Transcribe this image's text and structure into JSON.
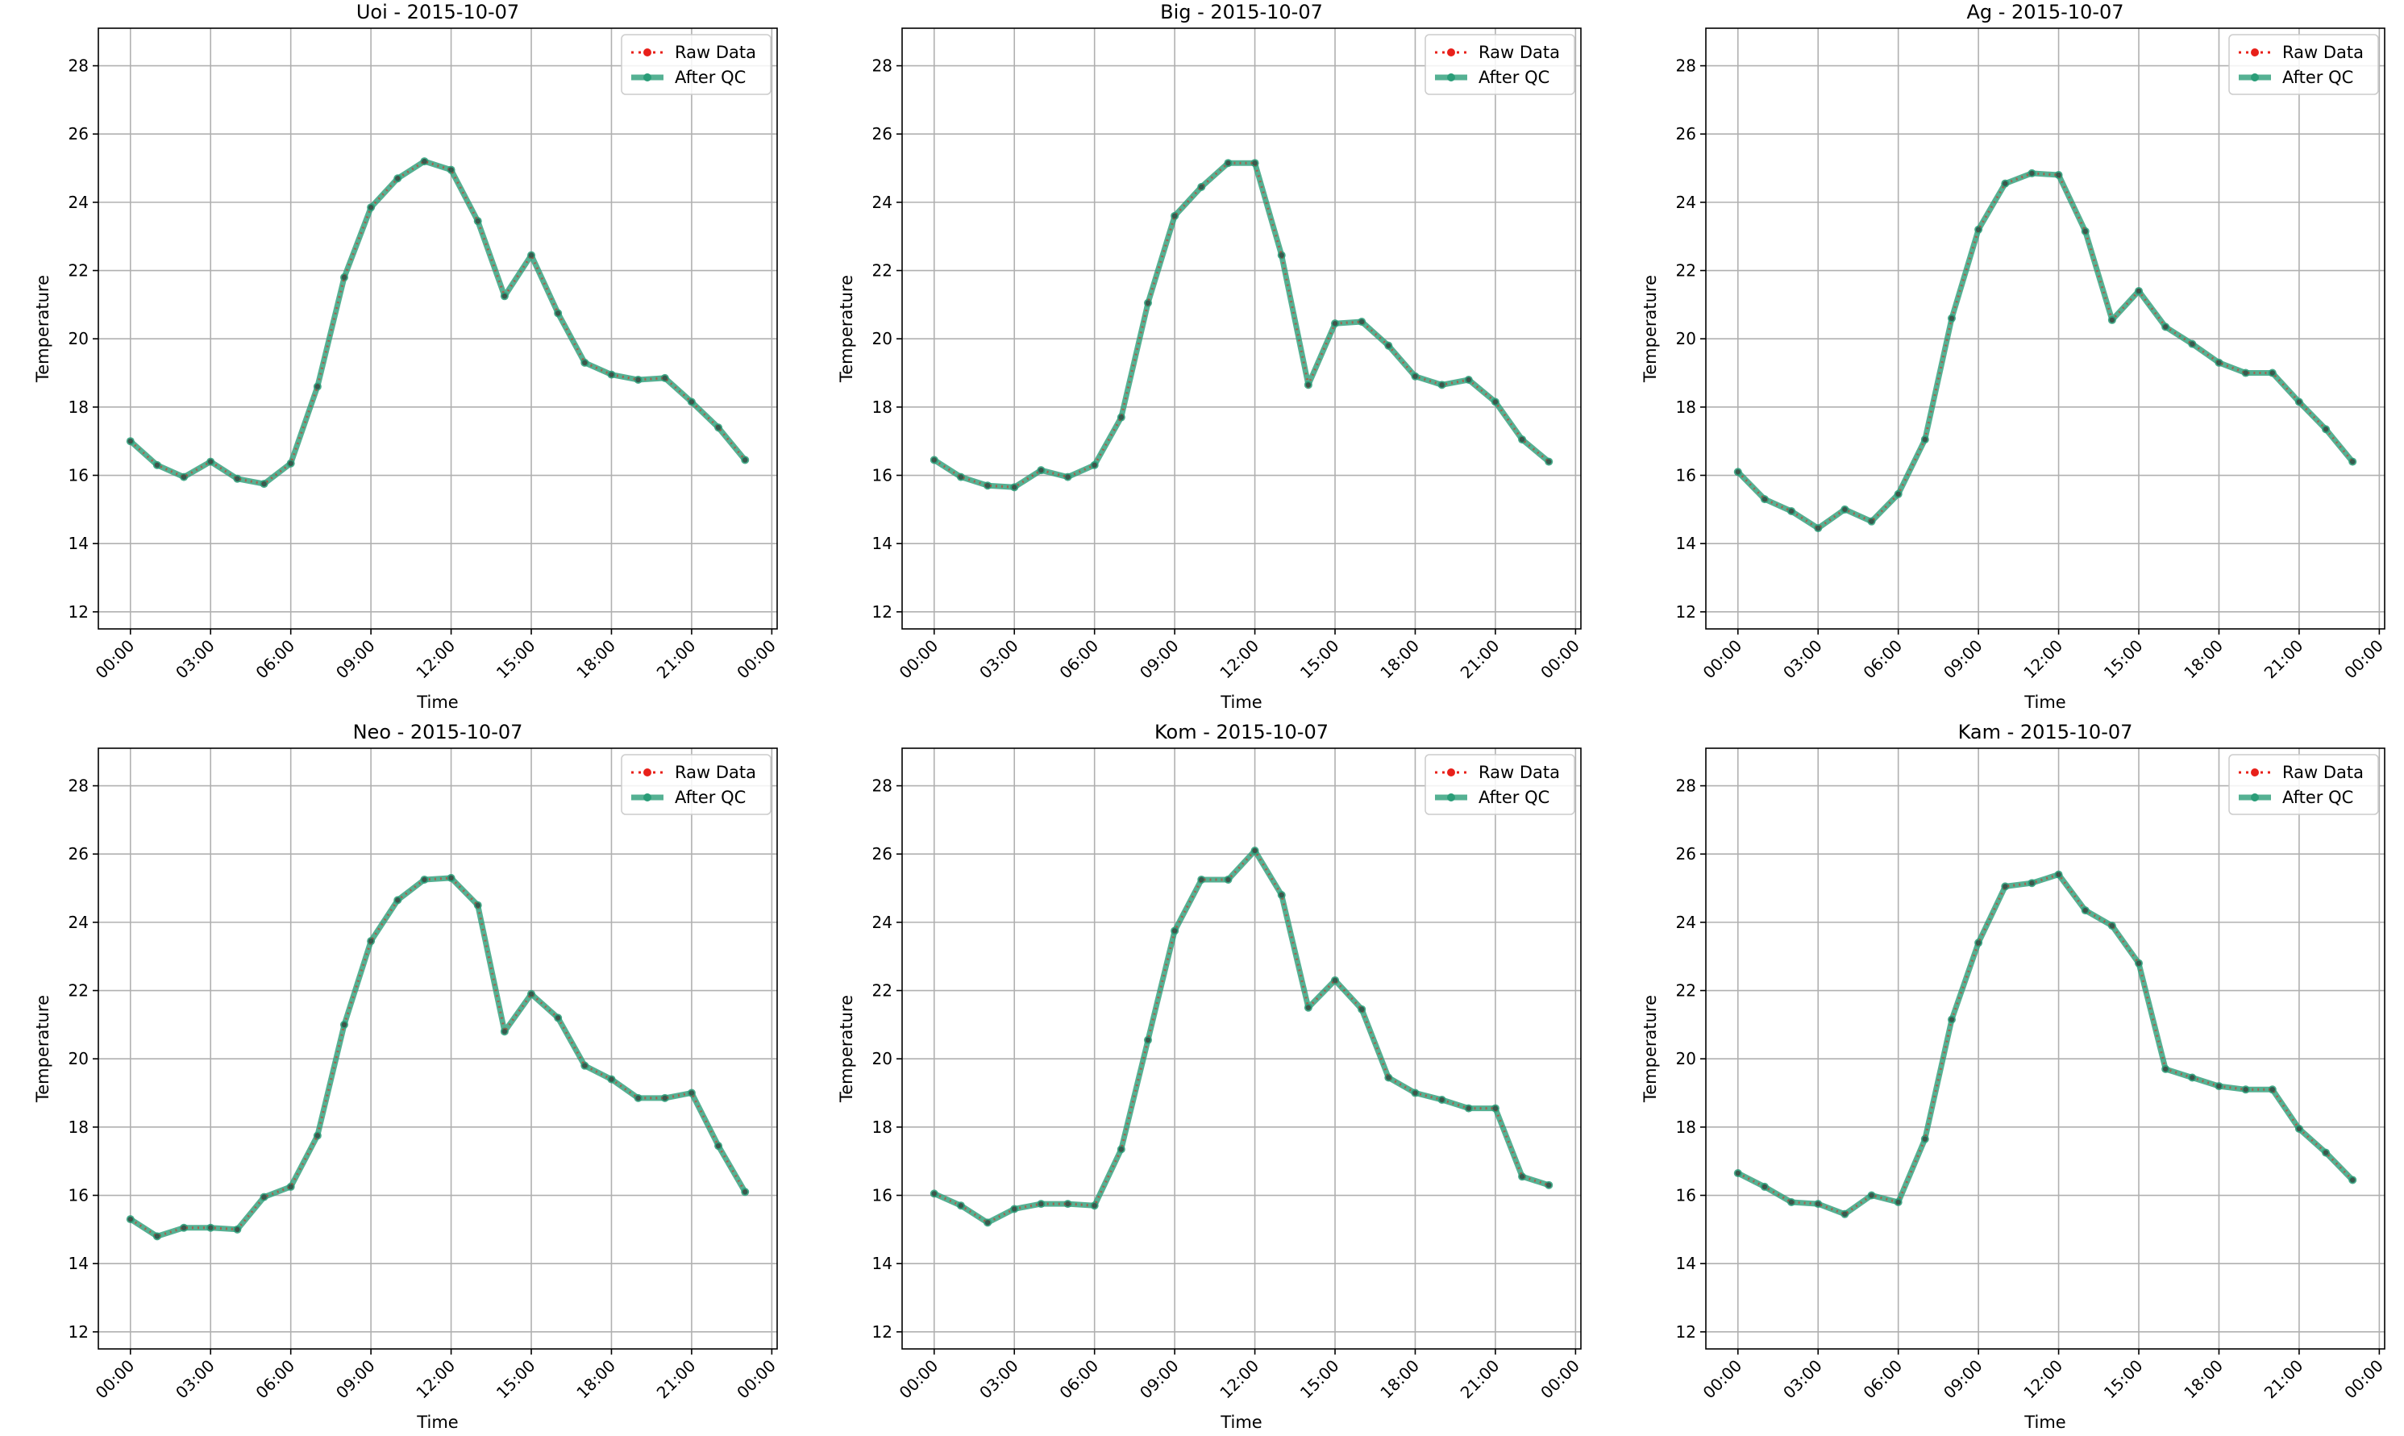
{
  "colors": {
    "raw": "#e8201a",
    "qc": "#2a9d78",
    "grid": "#b0b0b0",
    "axis": "#000000"
  },
  "legend_labels": {
    "raw": "Raw Data",
    "qc": "After QC"
  },
  "chart_data": [
    {
      "type": "line",
      "title": "Uoi - 2015-10-07",
      "xlabel": "Time",
      "ylabel": "Temperature",
      "x_ticks": [
        "00:00",
        "03:00",
        "06:00",
        "09:00",
        "12:00",
        "15:00",
        "18:00",
        "21:00",
        "00:00"
      ],
      "y_ticks": [
        12,
        14,
        16,
        18,
        20,
        22,
        24,
        26,
        28
      ],
      "ylim": [
        11.5,
        29.1
      ],
      "xlim_hours": [
        -1.2,
        24.2
      ],
      "grid": true,
      "legend": "top-right",
      "x_hours": [
        0,
        1,
        2,
        3,
        4,
        5,
        6,
        7,
        8,
        9,
        10,
        11,
        12,
        13,
        14,
        15,
        16,
        17,
        18,
        19,
        20,
        21,
        22,
        23
      ],
      "series": [
        {
          "name": "Raw Data",
          "values": [
            17.0,
            16.3,
            15.95,
            16.4,
            15.9,
            15.75,
            16.35,
            18.6,
            21.8,
            23.85,
            24.7,
            25.2,
            24.95,
            23.45,
            21.25,
            22.45,
            20.75,
            19.3,
            18.95,
            18.8,
            18.85,
            18.15,
            17.4,
            16.45
          ]
        },
        {
          "name": "After QC",
          "values": [
            17.0,
            16.3,
            15.95,
            16.4,
            15.9,
            15.75,
            16.35,
            18.6,
            21.8,
            23.85,
            24.7,
            25.2,
            24.95,
            23.45,
            21.25,
            22.45,
            20.75,
            19.3,
            18.95,
            18.8,
            18.85,
            18.15,
            17.4,
            16.45
          ]
        }
      ]
    },
    {
      "type": "line",
      "title": "Big - 2015-10-07",
      "xlabel": "Time",
      "ylabel": "Temperature",
      "x_ticks": [
        "00:00",
        "03:00",
        "06:00",
        "09:00",
        "12:00",
        "15:00",
        "18:00",
        "21:00",
        "00:00"
      ],
      "y_ticks": [
        12,
        14,
        16,
        18,
        20,
        22,
        24,
        26,
        28
      ],
      "ylim": [
        11.5,
        29.1
      ],
      "xlim_hours": [
        -1.2,
        24.2
      ],
      "grid": true,
      "legend": "top-right",
      "x_hours": [
        0,
        1,
        2,
        3,
        4,
        5,
        6,
        7,
        8,
        9,
        10,
        11,
        12,
        13,
        14,
        15,
        16,
        17,
        18,
        19,
        20,
        21,
        22,
        23
      ],
      "series": [
        {
          "name": "Raw Data",
          "values": [
            16.45,
            15.95,
            15.7,
            15.65,
            16.15,
            15.95,
            16.3,
            17.7,
            21.05,
            23.6,
            24.45,
            25.15,
            25.15,
            22.45,
            18.65,
            20.45,
            20.5,
            19.8,
            18.9,
            18.65,
            18.8,
            18.15,
            17.05,
            16.4
          ]
        },
        {
          "name": "After QC",
          "values": [
            16.45,
            15.95,
            15.7,
            15.65,
            16.15,
            15.95,
            16.3,
            17.7,
            21.05,
            23.6,
            24.45,
            25.15,
            25.15,
            22.45,
            18.65,
            20.45,
            20.5,
            19.8,
            18.9,
            18.65,
            18.8,
            18.15,
            17.05,
            16.4
          ]
        }
      ]
    },
    {
      "type": "line",
      "title": "Ag - 2015-10-07",
      "xlabel": "Time",
      "ylabel": "Temperature",
      "x_ticks": [
        "00:00",
        "03:00",
        "06:00",
        "09:00",
        "12:00",
        "15:00",
        "18:00",
        "21:00",
        "00:00"
      ],
      "y_ticks": [
        12,
        14,
        16,
        18,
        20,
        22,
        24,
        26,
        28
      ],
      "ylim": [
        11.5,
        29.1
      ],
      "xlim_hours": [
        -1.2,
        24.2
      ],
      "grid": true,
      "legend": "top-right",
      "x_hours": [
        0,
        1,
        2,
        3,
        4,
        5,
        6,
        7,
        8,
        9,
        10,
        11,
        12,
        13,
        14,
        15,
        16,
        17,
        18,
        19,
        20,
        21,
        22,
        23
      ],
      "series": [
        {
          "name": "Raw Data",
          "values": [
            16.1,
            15.3,
            14.95,
            14.45,
            15.0,
            14.65,
            15.45,
            17.05,
            20.6,
            23.2,
            24.55,
            24.85,
            24.8,
            23.15,
            20.55,
            21.4,
            20.35,
            19.85,
            19.3,
            19.0,
            19.0,
            18.15,
            17.35,
            16.4
          ]
        },
        {
          "name": "After QC",
          "values": [
            16.1,
            15.3,
            14.95,
            14.45,
            15.0,
            14.65,
            15.45,
            17.05,
            20.6,
            23.2,
            24.55,
            24.85,
            24.8,
            23.15,
            20.55,
            21.4,
            20.35,
            19.85,
            19.3,
            19.0,
            19.0,
            18.15,
            17.35,
            16.4
          ]
        }
      ]
    },
    {
      "type": "line",
      "title": "Neo - 2015-10-07",
      "xlabel": "Time",
      "ylabel": "Temperature",
      "x_ticks": [
        "00:00",
        "03:00",
        "06:00",
        "09:00",
        "12:00",
        "15:00",
        "18:00",
        "21:00",
        "00:00"
      ],
      "y_ticks": [
        12,
        14,
        16,
        18,
        20,
        22,
        24,
        26,
        28
      ],
      "ylim": [
        11.5,
        29.1
      ],
      "xlim_hours": [
        -1.2,
        24.2
      ],
      "grid": true,
      "legend": "top-right",
      "x_hours": [
        0,
        1,
        2,
        3,
        4,
        5,
        6,
        7,
        8,
        9,
        10,
        11,
        12,
        13,
        14,
        15,
        16,
        17,
        18,
        19,
        20,
        21,
        22,
        23
      ],
      "series": [
        {
          "name": "Raw Data",
          "values": [
            15.3,
            14.8,
            15.05,
            15.05,
            15.0,
            15.95,
            16.25,
            17.75,
            21.0,
            23.45,
            24.65,
            25.25,
            25.3,
            24.5,
            20.8,
            21.9,
            21.2,
            19.8,
            19.4,
            18.85,
            18.85,
            19.0,
            17.45,
            16.1
          ]
        },
        {
          "name": "After QC",
          "values": [
            15.3,
            14.8,
            15.05,
            15.05,
            15.0,
            15.95,
            16.25,
            17.75,
            21.0,
            23.45,
            24.65,
            25.25,
            25.3,
            24.5,
            20.8,
            21.9,
            21.2,
            19.8,
            19.4,
            18.85,
            18.85,
            19.0,
            17.45,
            16.1
          ]
        }
      ]
    },
    {
      "type": "line",
      "title": "Kom - 2015-10-07",
      "xlabel": "Time",
      "ylabel": "Temperature",
      "x_ticks": [
        "00:00",
        "03:00",
        "06:00",
        "09:00",
        "12:00",
        "15:00",
        "18:00",
        "21:00",
        "00:00"
      ],
      "y_ticks": [
        12,
        14,
        16,
        18,
        20,
        22,
        24,
        26,
        28
      ],
      "ylim": [
        11.5,
        29.1
      ],
      "xlim_hours": [
        -1.2,
        24.2
      ],
      "grid": true,
      "legend": "top-right",
      "x_hours": [
        0,
        1,
        2,
        3,
        4,
        5,
        6,
        7,
        8,
        9,
        10,
        11,
        12,
        13,
        14,
        15,
        16,
        17,
        18,
        19,
        20,
        21,
        22,
        23
      ],
      "series": [
        {
          "name": "Raw Data",
          "values": [
            16.05,
            15.7,
            15.2,
            15.6,
            15.75,
            15.75,
            15.7,
            17.35,
            20.55,
            23.75,
            25.25,
            25.25,
            26.1,
            24.8,
            21.5,
            22.3,
            21.45,
            19.45,
            19.0,
            18.8,
            18.55,
            18.55,
            16.55,
            16.3
          ]
        },
        {
          "name": "After QC",
          "values": [
            16.05,
            15.7,
            15.2,
            15.6,
            15.75,
            15.75,
            15.7,
            17.35,
            20.55,
            23.75,
            25.25,
            25.25,
            26.1,
            24.8,
            21.5,
            22.3,
            21.45,
            19.45,
            19.0,
            18.8,
            18.55,
            18.55,
            16.55,
            16.3
          ]
        }
      ]
    },
    {
      "type": "line",
      "title": "Kam - 2015-10-07",
      "xlabel": "Time",
      "ylabel": "Temperature",
      "x_ticks": [
        "00:00",
        "03:00",
        "06:00",
        "09:00",
        "12:00",
        "15:00",
        "18:00",
        "21:00",
        "00:00"
      ],
      "y_ticks": [
        12,
        14,
        16,
        18,
        20,
        22,
        24,
        26,
        28
      ],
      "ylim": [
        11.5,
        29.1
      ],
      "xlim_hours": [
        -1.2,
        24.2
      ],
      "grid": true,
      "legend": "top-right",
      "x_hours": [
        0,
        1,
        2,
        3,
        4,
        5,
        6,
        7,
        8,
        9,
        10,
        11,
        12,
        13,
        14,
        15,
        16,
        17,
        18,
        19,
        20,
        21,
        22,
        23
      ],
      "series": [
        {
          "name": "Raw Data",
          "values": [
            16.65,
            16.25,
            15.8,
            15.75,
            15.45,
            16.0,
            15.8,
            17.65,
            21.15,
            23.4,
            25.05,
            25.15,
            25.4,
            24.35,
            23.9,
            22.8,
            19.7,
            19.45,
            19.2,
            19.1,
            19.1,
            17.95,
            17.25,
            16.45
          ]
        },
        {
          "name": "After QC",
          "values": [
            16.65,
            16.25,
            15.8,
            15.75,
            15.45,
            16.0,
            15.8,
            17.65,
            21.15,
            23.4,
            25.05,
            25.15,
            25.4,
            24.35,
            23.9,
            22.8,
            19.7,
            19.45,
            19.2,
            19.1,
            19.1,
            17.95,
            17.25,
            16.45
          ]
        }
      ]
    }
  ]
}
